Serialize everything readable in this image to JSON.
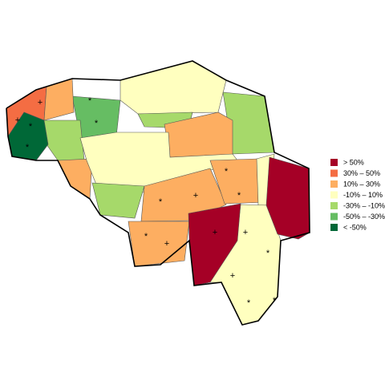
{
  "legend": {
    "items": [
      {
        "label": "> 50%",
        "color": "#a50026"
      },
      {
        "label": "30% – 50%",
        "color": "#f46d43"
      },
      {
        "label": "10% – 30%",
        "color": "#fdae61"
      },
      {
        "label": "-10% – 10%",
        "color": "#ffffbf"
      },
      {
        "label": "-30% – -10%",
        "color": "#a6d96a"
      },
      {
        "label": "-50% – -30%",
        "color": "#66bd63"
      },
      {
        "label": "< -50%",
        "color": "#006837"
      }
    ]
  },
  "symbols": {
    "plus": "+",
    "star": "*"
  }
}
